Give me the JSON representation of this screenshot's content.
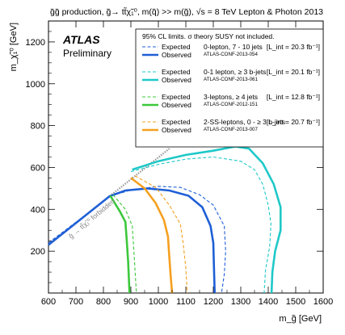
{
  "chart_data": {
    "type": "line",
    "title_left": "g̃g̃ production, g̃→ tt̃χ̃₁⁰, m(q̃) >> m(g̃), √s = 8 TeV",
    "title_right": "Lepton & Photon 2013",
    "atlas_label": "ATLAS",
    "atlas_sublabel": "Preliminary",
    "xlabel": "m_g̃ [GeV]",
    "ylabel": "m_χ̃₁⁰ [GeV]",
    "xlim": [
      600,
      1600
    ],
    "ylim": [
      0,
      1300
    ],
    "x_ticks": [
      "600",
      "700",
      "800",
      "900",
      "1000",
      "1100",
      "1200",
      "1300",
      "1400",
      "1500",
      "1600"
    ],
    "y_ticks": [
      "200",
      "400",
      "600",
      "800",
      "1000",
      "1200"
    ],
    "forbidden_label": "g̃ → tt̃χ̃₁⁰ forbidden",
    "legend": {
      "header": "95% CL limits. σ theory SUSY not included.",
      "expected_label": "Expected",
      "observed_label": "Observed",
      "analyses": [
        {
          "name": "0-lepton, 7 - 10 jets",
          "conf": "ATLAS-CONF-2013-054",
          "lumi": "[L_int = 20.3 fb⁻¹]",
          "color": "#1f5fd6"
        },
        {
          "name": "0-1 lepton, ≥ 3 b-jets",
          "conf": "ATLAS-CONF-2013-061",
          "lumi": "[L_int = 20.1 fb⁻¹]",
          "color": "#1fc8c8"
        },
        {
          "name": "3-leptons, ≥ 4 jets",
          "conf": "ATLAS-CONF-2012-151",
          "lumi": "[L_int = 12.8 fb⁻¹]",
          "color": "#3cc83c"
        },
        {
          "name": "2-SS-leptons, 0 - ≥ 3 b-jets",
          "conf": "ATLAS-CONF-2013-007",
          "lumi": "[L_int = 20.7 fb⁻¹]",
          "color": "#f5a020"
        }
      ]
    },
    "series": [
      {
        "name": "0-lepton, 7 - 10 jets Expected",
        "style": "dashed",
        "color": "#1f5fd6",
        "points": [
          [
            600,
            240
          ],
          [
            828,
            465
          ],
          [
            900,
            492
          ],
          [
            1000,
            510
          ],
          [
            1080,
            505
          ],
          [
            1150,
            470
          ],
          [
            1200,
            420
          ],
          [
            1240,
            320
          ],
          [
            1245,
            200
          ],
          [
            1240,
            90
          ],
          [
            1230,
            0
          ]
        ]
      },
      {
        "name": "0-lepton, 7 - 10 jets Observed",
        "style": "solid",
        "color": "#1f5fd6",
        "points": [
          [
            600,
            230
          ],
          [
            822,
            462
          ],
          [
            880,
            490
          ],
          [
            960,
            500
          ],
          [
            1040,
            490
          ],
          [
            1110,
            465
          ],
          [
            1160,
            410
          ],
          [
            1190,
            320
          ],
          [
            1200,
            240
          ],
          [
            1202,
            140
          ],
          [
            1205,
            0
          ]
        ]
      },
      {
        "name": "0-1 lepton, ≥ 3 b-jets Expected",
        "style": "dashed",
        "color": "#1fc8c8",
        "points": [
          [
            900,
            580
          ],
          [
            1000,
            615
          ],
          [
            1100,
            640
          ],
          [
            1200,
            650
          ],
          [
            1300,
            630
          ],
          [
            1350,
            590
          ],
          [
            1380,
            520
          ],
          [
            1400,
            420
          ],
          [
            1410,
            330
          ],
          [
            1405,
            220
          ],
          [
            1390,
            110
          ],
          [
            1385,
            0
          ]
        ]
      },
      {
        "name": "0-1 lepton, ≥ 3 b-jets Observed",
        "style": "solid",
        "color": "#1fc8c8",
        "points": [
          [
            905,
            590
          ],
          [
            1000,
            630
          ],
          [
            1100,
            660
          ],
          [
            1200,
            680
          ],
          [
            1280,
            700
          ],
          [
            1330,
            690
          ],
          [
            1380,
            620
          ],
          [
            1420,
            520
          ],
          [
            1445,
            410
          ],
          [
            1445,
            300
          ],
          [
            1425,
            200
          ],
          [
            1415,
            100
          ],
          [
            1412,
            0
          ]
        ]
      },
      {
        "name": "3-leptons, ≥ 4 jets Expected",
        "style": "dashed",
        "color": "#3cc83c",
        "points": [
          [
            835,
            470
          ],
          [
            880,
            400
          ],
          [
            905,
            320
          ],
          [
            910,
            220
          ],
          [
            915,
            110
          ],
          [
            920,
            0
          ]
        ]
      },
      {
        "name": "3-leptons, ≥ 4 jets Observed",
        "style": "solid",
        "color": "#3cc83c",
        "points": [
          [
            825,
            465
          ],
          [
            860,
            390
          ],
          [
            880,
            340
          ],
          [
            885,
            250
          ],
          [
            890,
            150
          ],
          [
            895,
            0
          ]
        ]
      },
      {
        "name": "2-SS-leptons, 0 - ≥ 3 b-jets Expected",
        "style": "dashed",
        "color": "#f5a020",
        "points": [
          [
            915,
            560
          ],
          [
            990,
            505
          ],
          [
            1040,
            420
          ],
          [
            1080,
            330
          ],
          [
            1090,
            240
          ],
          [
            1100,
            120
          ],
          [
            1105,
            0
          ]
        ]
      },
      {
        "name": "2-SS-leptons, 0 - ≥ 3 b-jets Observed",
        "style": "solid",
        "color": "#f5a020",
        "points": [
          [
            900,
            550
          ],
          [
            950,
            500
          ],
          [
            990,
            430
          ],
          [
            1020,
            350
          ],
          [
            1035,
            270
          ],
          [
            1040,
            170
          ],
          [
            1045,
            80
          ],
          [
            1050,
            0
          ]
        ]
      }
    ]
  }
}
